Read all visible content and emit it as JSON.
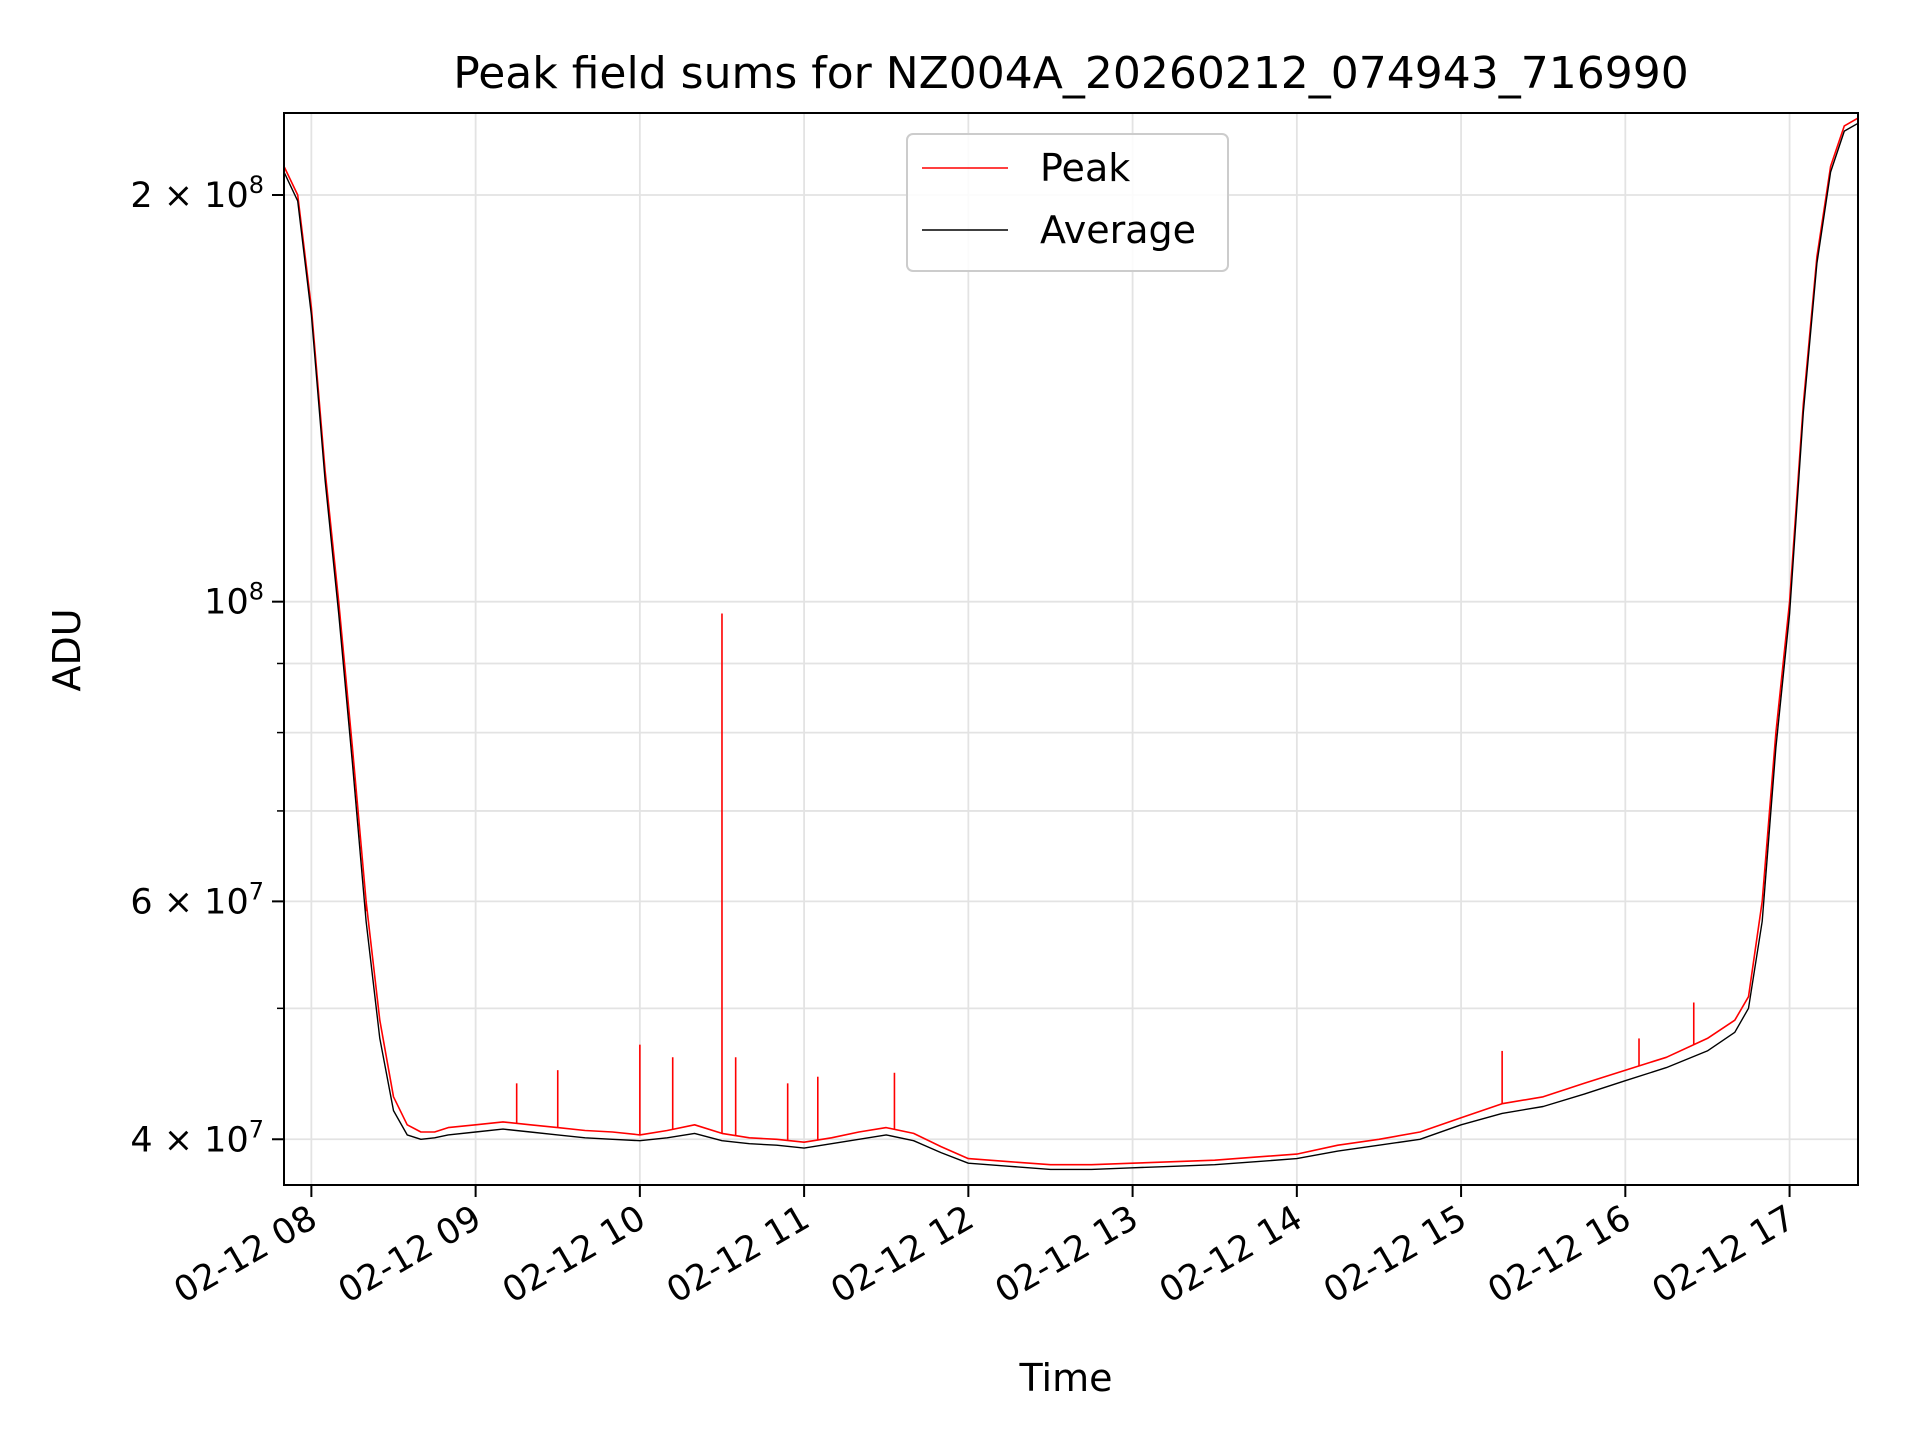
{
  "chart_data": {
    "type": "line",
    "title": "Peak field sums for NZ004A_20260212_074943_716990",
    "xlabel": "Time",
    "ylabel": "ADU",
    "yscale": "log",
    "xlim": [
      "02-12 07:50",
      "02-12 17:25"
    ],
    "ylim": [
      37000000,
      230000000
    ],
    "grid": true,
    "legend_position": "upper center",
    "x_ticks": [
      {
        "label": "02-12 08",
        "value": "02-12 08:00"
      },
      {
        "label": "02-12 09",
        "value": "02-12 09:00"
      },
      {
        "label": "02-12 10",
        "value": "02-12 10:00"
      },
      {
        "label": "02-12 11",
        "value": "02-12 11:00"
      },
      {
        "label": "02-12 12",
        "value": "02-12 12:00"
      },
      {
        "label": "02-12 13",
        "value": "02-12 13:00"
      },
      {
        "label": "02-12 14",
        "value": "02-12 14:00"
      },
      {
        "label": "02-12 15",
        "value": "02-12 15:00"
      },
      {
        "label": "02-12 16",
        "value": "02-12 16:00"
      },
      {
        "label": "02-12 17",
        "value": "02-12 17:00"
      }
    ],
    "y_ticks": [
      {
        "label": "4 × 10⁷",
        "base": "4 × 10",
        "exp": "7",
        "value": 40000000
      },
      {
        "label": "6 × 10⁷",
        "base": "6 × 10",
        "exp": "7",
        "value": 60000000
      },
      {
        "label": "10⁸",
        "base": "10",
        "exp": "8",
        "value": 100000000
      },
      {
        "label": "2 × 10⁸",
        "base": "2 × 10",
        "exp": "8",
        "value": 200000000
      }
    ],
    "y_minor_ticks": [
      50000000,
      70000000,
      80000000,
      90000000
    ],
    "series": [
      {
        "name": "Peak",
        "color": "#ff0000",
        "x": [
          "02-12 07:50",
          "02-12 07:55",
          "02-12 08:00",
          "02-12 08:05",
          "02-12 08:10",
          "02-12 08:15",
          "02-12 08:20",
          "02-12 08:25",
          "02-12 08:30",
          "02-12 08:35",
          "02-12 08:40",
          "02-12 08:45",
          "02-12 08:50",
          "02-12 09:00",
          "02-12 09:10",
          "02-12 09:20",
          "02-12 09:30",
          "02-12 09:40",
          "02-12 09:50",
          "02-12 10:00",
          "02-12 10:10",
          "02-12 10:20",
          "02-12 10:30",
          "02-12 10:40",
          "02-12 10:50",
          "02-12 11:00",
          "02-12 11:10",
          "02-12 11:20",
          "02-12 11:30",
          "02-12 11:40",
          "02-12 11:50",
          "02-12 12:00",
          "02-12 12:15",
          "02-12 12:30",
          "02-12 12:45",
          "02-12 13:00",
          "02-12 13:15",
          "02-12 13:30",
          "02-12 13:45",
          "02-12 14:00",
          "02-12 14:15",
          "02-12 14:30",
          "02-12 14:45",
          "02-12 15:00",
          "02-12 15:15",
          "02-12 15:30",
          "02-12 15:45",
          "02-12 16:00",
          "02-12 16:15",
          "02-12 16:30",
          "02-12 16:40",
          "02-12 16:45",
          "02-12 16:50",
          "02-12 16:55",
          "02-12 17:00",
          "02-12 17:05",
          "02-12 17:10",
          "02-12 17:15",
          "02-12 17:20",
          "02-12 17:25"
        ],
        "y": [
          210000000,
          200000000,
          165000000,
          125000000,
          100000000,
          78000000,
          60000000,
          49000000,
          43000000,
          41000000,
          40500000,
          40500000,
          40800000,
          41000000,
          41200000,
          41000000,
          40800000,
          40600000,
          40500000,
          40300000,
          40600000,
          41000000,
          40400000,
          40100000,
          40000000,
          39800000,
          40100000,
          40500000,
          40800000,
          40400000,
          39500000,
          38700000,
          38500000,
          38300000,
          38300000,
          38400000,
          38500000,
          38600000,
          38800000,
          39000000,
          39600000,
          40000000,
          40500000,
          41500000,
          42500000,
          43000000,
          44000000,
          45000000,
          46000000,
          47500000,
          49000000,
          51000000,
          60000000,
          80000000,
          100000000,
          140000000,
          180000000,
          210000000,
          225000000,
          228000000
        ],
        "spikes": [
          {
            "x": "02-12 08:20",
            "y": 59000000
          },
          {
            "x": "02-12 09:15",
            "y": 44000000
          },
          {
            "x": "02-12 09:30",
            "y": 45000000
          },
          {
            "x": "02-12 10:00",
            "y": 47000000
          },
          {
            "x": "02-12 10:12",
            "y": 46000000
          },
          {
            "x": "02-12 10:30",
            "y": 98000000
          },
          {
            "x": "02-12 10:35",
            "y": 46000000
          },
          {
            "x": "02-12 10:54",
            "y": 44000000
          },
          {
            "x": "02-12 11:05",
            "y": 44500000
          },
          {
            "x": "02-12 11:33",
            "y": 44800000
          },
          {
            "x": "02-12 15:15",
            "y": 46500000
          },
          {
            "x": "02-12 16:05",
            "y": 47500000
          },
          {
            "x": "02-12 16:25",
            "y": 50500000
          }
        ]
      },
      {
        "name": "Average",
        "color": "#000000",
        "x": [
          "02-12 07:50",
          "02-12 07:55",
          "02-12 08:00",
          "02-12 08:05",
          "02-12 08:10",
          "02-12 08:15",
          "02-12 08:20",
          "02-12 08:25",
          "02-12 08:30",
          "02-12 08:35",
          "02-12 08:40",
          "02-12 08:45",
          "02-12 08:50",
          "02-12 09:00",
          "02-12 09:10",
          "02-12 09:20",
          "02-12 09:30",
          "02-12 09:40",
          "02-12 09:50",
          "02-12 10:00",
          "02-12 10:10",
          "02-12 10:20",
          "02-12 10:30",
          "02-12 10:40",
          "02-12 10:50",
          "02-12 11:00",
          "02-12 11:10",
          "02-12 11:20",
          "02-12 11:30",
          "02-12 11:40",
          "02-12 11:50",
          "02-12 12:00",
          "02-12 12:15",
          "02-12 12:30",
          "02-12 12:45",
          "02-12 13:00",
          "02-12 13:15",
          "02-12 13:30",
          "02-12 13:45",
          "02-12 14:00",
          "02-12 14:15",
          "02-12 14:30",
          "02-12 14:45",
          "02-12 15:00",
          "02-12 15:15",
          "02-12 15:30",
          "02-12 15:45",
          "02-12 16:00",
          "02-12 16:15",
          "02-12 16:30",
          "02-12 16:40",
          "02-12 16:45",
          "02-12 16:50",
          "02-12 16:55",
          "02-12 17:00",
          "02-12 17:05",
          "02-12 17:10",
          "02-12 17:15",
          "02-12 17:20",
          "02-12 17:25"
        ],
        "y": [
          208000000,
          198000000,
          163000000,
          123000000,
          98000000,
          76000000,
          58000000,
          47500000,
          42000000,
          40300000,
          40000000,
          40100000,
          40300000,
          40500000,
          40700000,
          40500000,
          40300000,
          40100000,
          40000000,
          39900000,
          40100000,
          40400000,
          39900000,
          39700000,
          39600000,
          39400000,
          39700000,
          40000000,
          40300000,
          39900000,
          39100000,
          38400000,
          38200000,
          38000000,
          38000000,
          38100000,
          38200000,
          38300000,
          38500000,
          38700000,
          39200000,
          39600000,
          40000000,
          41000000,
          41800000,
          42300000,
          43200000,
          44200000,
          45200000,
          46500000,
          48000000,
          50000000,
          58000000,
          78000000,
          98000000,
          138000000,
          178000000,
          208000000,
          223000000,
          226000000
        ]
      }
    ]
  }
}
